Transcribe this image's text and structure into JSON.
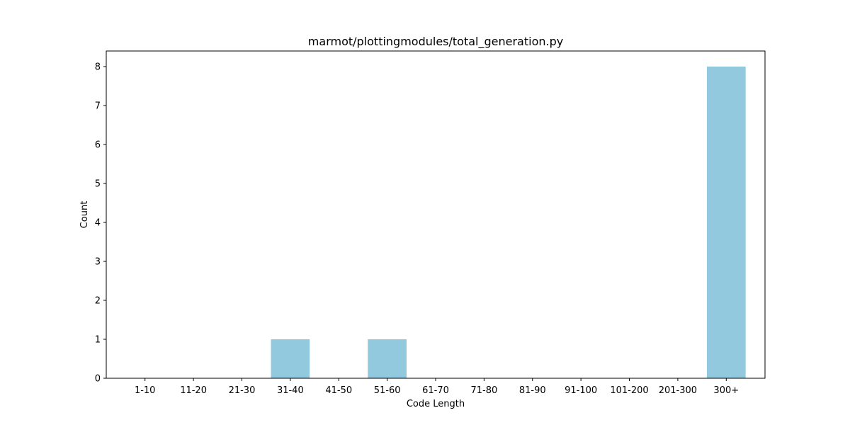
{
  "chart_data": {
    "type": "bar",
    "title": "marmot/plottingmodules/total_generation.py",
    "xlabel": "Code Length",
    "ylabel": "Count",
    "categories": [
      "1-10",
      "11-20",
      "21-30",
      "31-40",
      "41-50",
      "51-60",
      "61-70",
      "71-80",
      "81-90",
      "91-100",
      "101-200",
      "201-300",
      "300+"
    ],
    "values": [
      0,
      0,
      0,
      1,
      0,
      1,
      0,
      0,
      0,
      0,
      0,
      0,
      8
    ],
    "yticks": [
      "0",
      "1",
      "2",
      "3",
      "4",
      "5",
      "6",
      "7",
      "8"
    ],
    "ylim": [
      0,
      8.4
    ],
    "grid": false,
    "bar_color": "#92c9de"
  }
}
